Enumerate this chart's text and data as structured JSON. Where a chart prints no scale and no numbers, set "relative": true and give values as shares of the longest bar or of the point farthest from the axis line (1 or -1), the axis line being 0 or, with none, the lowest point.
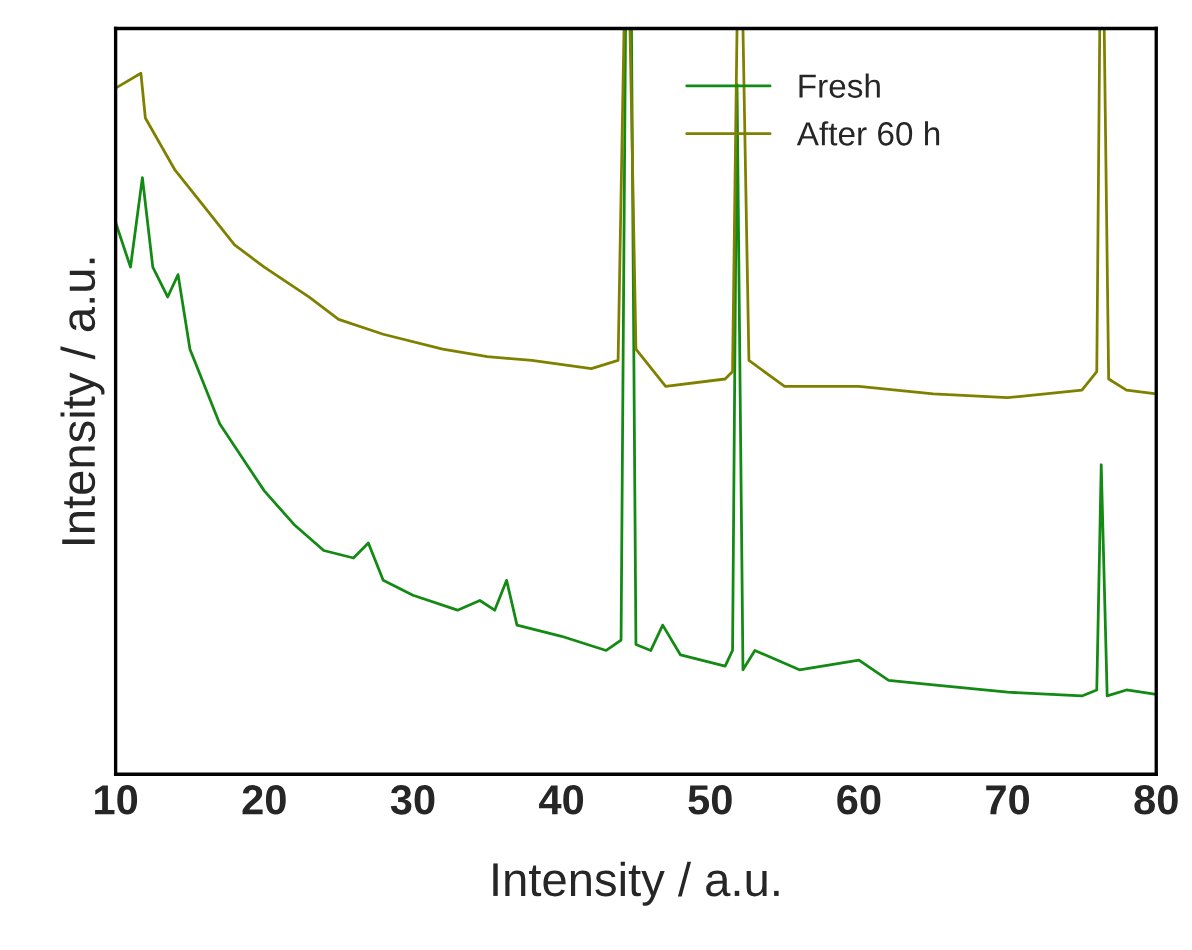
{
  "chart_data": {
    "type": "line",
    "xlabel": "Intensity / a.u.",
    "ylabel": "Intensity / a.u.",
    "relative": true,
    "xlim": [
      10,
      80
    ],
    "xticks": [
      10,
      20,
      30,
      40,
      50,
      60,
      70,
      80
    ],
    "legend": "top right",
    "grid": false,
    "series": [
      {
        "name": "Fresh",
        "color": "#138a13",
        "x": [
          10,
          11,
          11.8,
          12.5,
          13.5,
          14.2,
          15,
          17,
          20,
          22,
          24,
          26,
          27,
          28,
          30,
          33,
          34.5,
          35.5,
          36.3,
          37,
          40,
          43,
          44,
          44.3,
          44.7,
          45,
          46,
          46.8,
          48,
          51,
          51.5,
          51.8,
          52.2,
          53,
          56,
          60,
          62,
          65,
          70,
          75,
          76,
          76.3,
          76.7,
          78,
          80
        ],
        "values": [
          0.74,
          0.68,
          0.8,
          0.68,
          0.64,
          0.67,
          0.57,
          0.47,
          0.38,
          0.335,
          0.3,
          0.29,
          0.31,
          0.26,
          0.24,
          0.22,
          0.233,
          0.22,
          0.26,
          0.2,
          0.185,
          0.166,
          0.18,
          1,
          1,
          0.174,
          0.166,
          0.2,
          0.16,
          0.145,
          0.166,
          0.925,
          0.14,
          0.166,
          0.14,
          0.153,
          0.126,
          0.12,
          0.11,
          0.105,
          0.113,
          0.415,
          0.105,
          0.113,
          0.107
        ]
      },
      {
        "name": "After 60 h",
        "color": "#808000",
        "x": [
          10,
          11.7,
          12,
          14,
          16,
          18,
          20,
          23,
          25,
          28,
          32,
          35,
          38,
          42,
          43.8,
          44.2,
          44.6,
          45,
          47,
          51,
          51.5,
          51.8,
          52.2,
          52.6,
          55,
          60,
          65,
          70,
          75,
          76,
          76.2,
          76.5,
          76.8,
          78,
          80
        ],
        "values": [
          0.92,
          0.94,
          0.88,
          0.81,
          0.76,
          0.71,
          0.68,
          0.64,
          0.61,
          0.59,
          0.57,
          0.56,
          0.555,
          0.544,
          0.555,
          1,
          1,
          0.57,
          0.52,
          0.53,
          0.54,
          1,
          1,
          0.555,
          0.52,
          0.52,
          0.51,
          0.505,
          0.515,
          0.54,
          1,
          1,
          0.53,
          0.515,
          0.51
        ]
      }
    ]
  }
}
